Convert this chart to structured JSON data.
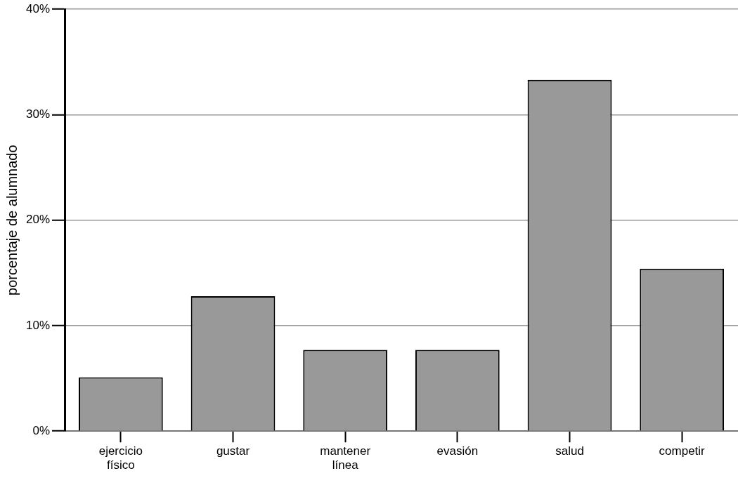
{
  "chart_data": {
    "type": "bar",
    "ylabel": "porcentaje de alumnado",
    "categories": [
      "ejercicio físico",
      "gustar",
      "mantener línea",
      "evasión",
      "salud",
      "competir"
    ],
    "values": [
      5.1,
      12.8,
      7.7,
      7.7,
      33.3,
      15.4
    ],
    "color": "#999999",
    "ylim": [
      0,
      40
    ],
    "yticks": [
      {
        "value": 0,
        "label": "0%"
      },
      {
        "value": 10,
        "label": "10%"
      },
      {
        "value": 20,
        "label": "20%"
      },
      {
        "value": 30,
        "label": "30%"
      },
      {
        "value": 40,
        "label": "40%"
      }
    ],
    "grid": "y",
    "legend": false
  }
}
